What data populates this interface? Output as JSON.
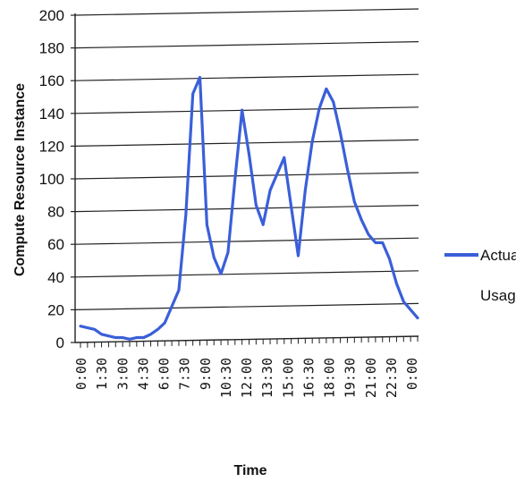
{
  "chart_data": {
    "type": "line",
    "title": "",
    "xlabel": "Time",
    "ylabel": "Compute Resource Instance",
    "ylim": [
      0,
      200
    ],
    "y_ticks": [
      0,
      20,
      40,
      60,
      80,
      100,
      120,
      140,
      160,
      180,
      200
    ],
    "x_tick_labels": [
      "0:00",
      "1:30",
      "3:00",
      "4:30",
      "6:00",
      "7:30",
      "9:00",
      "10:30",
      "12:00",
      "13:30",
      "15:00",
      "16:30",
      "18:00",
      "19:30",
      "21:00",
      "22:30",
      "0:00"
    ],
    "grid": true,
    "legend_position": "right",
    "series": [
      {
        "name": "Actual Usage",
        "color": "#3a5fd9",
        "x": [
          "0:00",
          "0:30",
          "1:00",
          "1:30",
          "2:00",
          "2:30",
          "3:00",
          "3:30",
          "4:00",
          "4:30",
          "5:00",
          "5:30",
          "6:00",
          "6:30",
          "7:00",
          "7:30",
          "8:00",
          "8:30",
          "9:00",
          "9:30",
          "10:00",
          "10:30",
          "11:00",
          "11:30",
          "12:00",
          "12:30",
          "13:00",
          "13:30",
          "14:00",
          "14:30",
          "15:00",
          "15:30",
          "16:00",
          "16:30",
          "17:00",
          "17:30",
          "18:00",
          "18:30",
          "19:00",
          "19:30",
          "20:00",
          "20:30",
          "21:00",
          "21:30",
          "22:00",
          "22:30",
          "23:00",
          "23:30",
          "0:00"
        ],
        "values": [
          10,
          9,
          8,
          5,
          4,
          3,
          3,
          2,
          3,
          3,
          5,
          8,
          12,
          22,
          32,
          78,
          152,
          162,
          72,
          52,
          42,
          55,
          100,
          142,
          115,
          84,
          72,
          93,
          103,
          113,
          83,
          53,
          93,
          123,
          143,
          155,
          147,
          128,
          106,
          86,
          75,
          66,
          61,
          61,
          51,
          36,
          25,
          20,
          15
        ]
      }
    ]
  }
}
